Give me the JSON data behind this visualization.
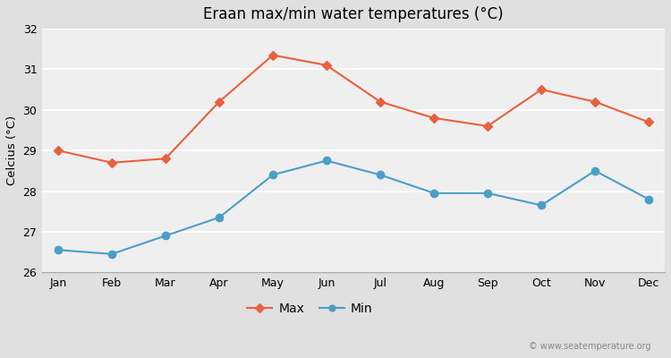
{
  "title": "Eraan max/min water temperatures (°C)",
  "ylabel": "Celcius (°C)",
  "months": [
    "Jan",
    "Feb",
    "Mar",
    "Apr",
    "May",
    "Jun",
    "Jul",
    "Aug",
    "Sep",
    "Oct",
    "Nov",
    "Dec"
  ],
  "max_temps": [
    29.0,
    28.7,
    28.8,
    30.2,
    31.35,
    31.1,
    30.2,
    29.8,
    29.6,
    30.5,
    30.2,
    29.7
  ],
  "min_temps": [
    26.55,
    26.45,
    26.9,
    27.35,
    28.4,
    28.75,
    28.4,
    27.95,
    27.95,
    27.65,
    28.5,
    27.8
  ],
  "max_color": "#e8603c",
  "min_color": "#4a9fc8",
  "fig_bg_color": "#e0e0e0",
  "plot_bg_color": "#efefef",
  "grid_color": "#ffffff",
  "ylim": [
    26.0,
    32.0
  ],
  "yticks": [
    26,
    27,
    28,
    29,
    30,
    31,
    32
  ],
  "watermark": "© www.seatemperature.org",
  "legend_labels": [
    "Max",
    "Min"
  ]
}
